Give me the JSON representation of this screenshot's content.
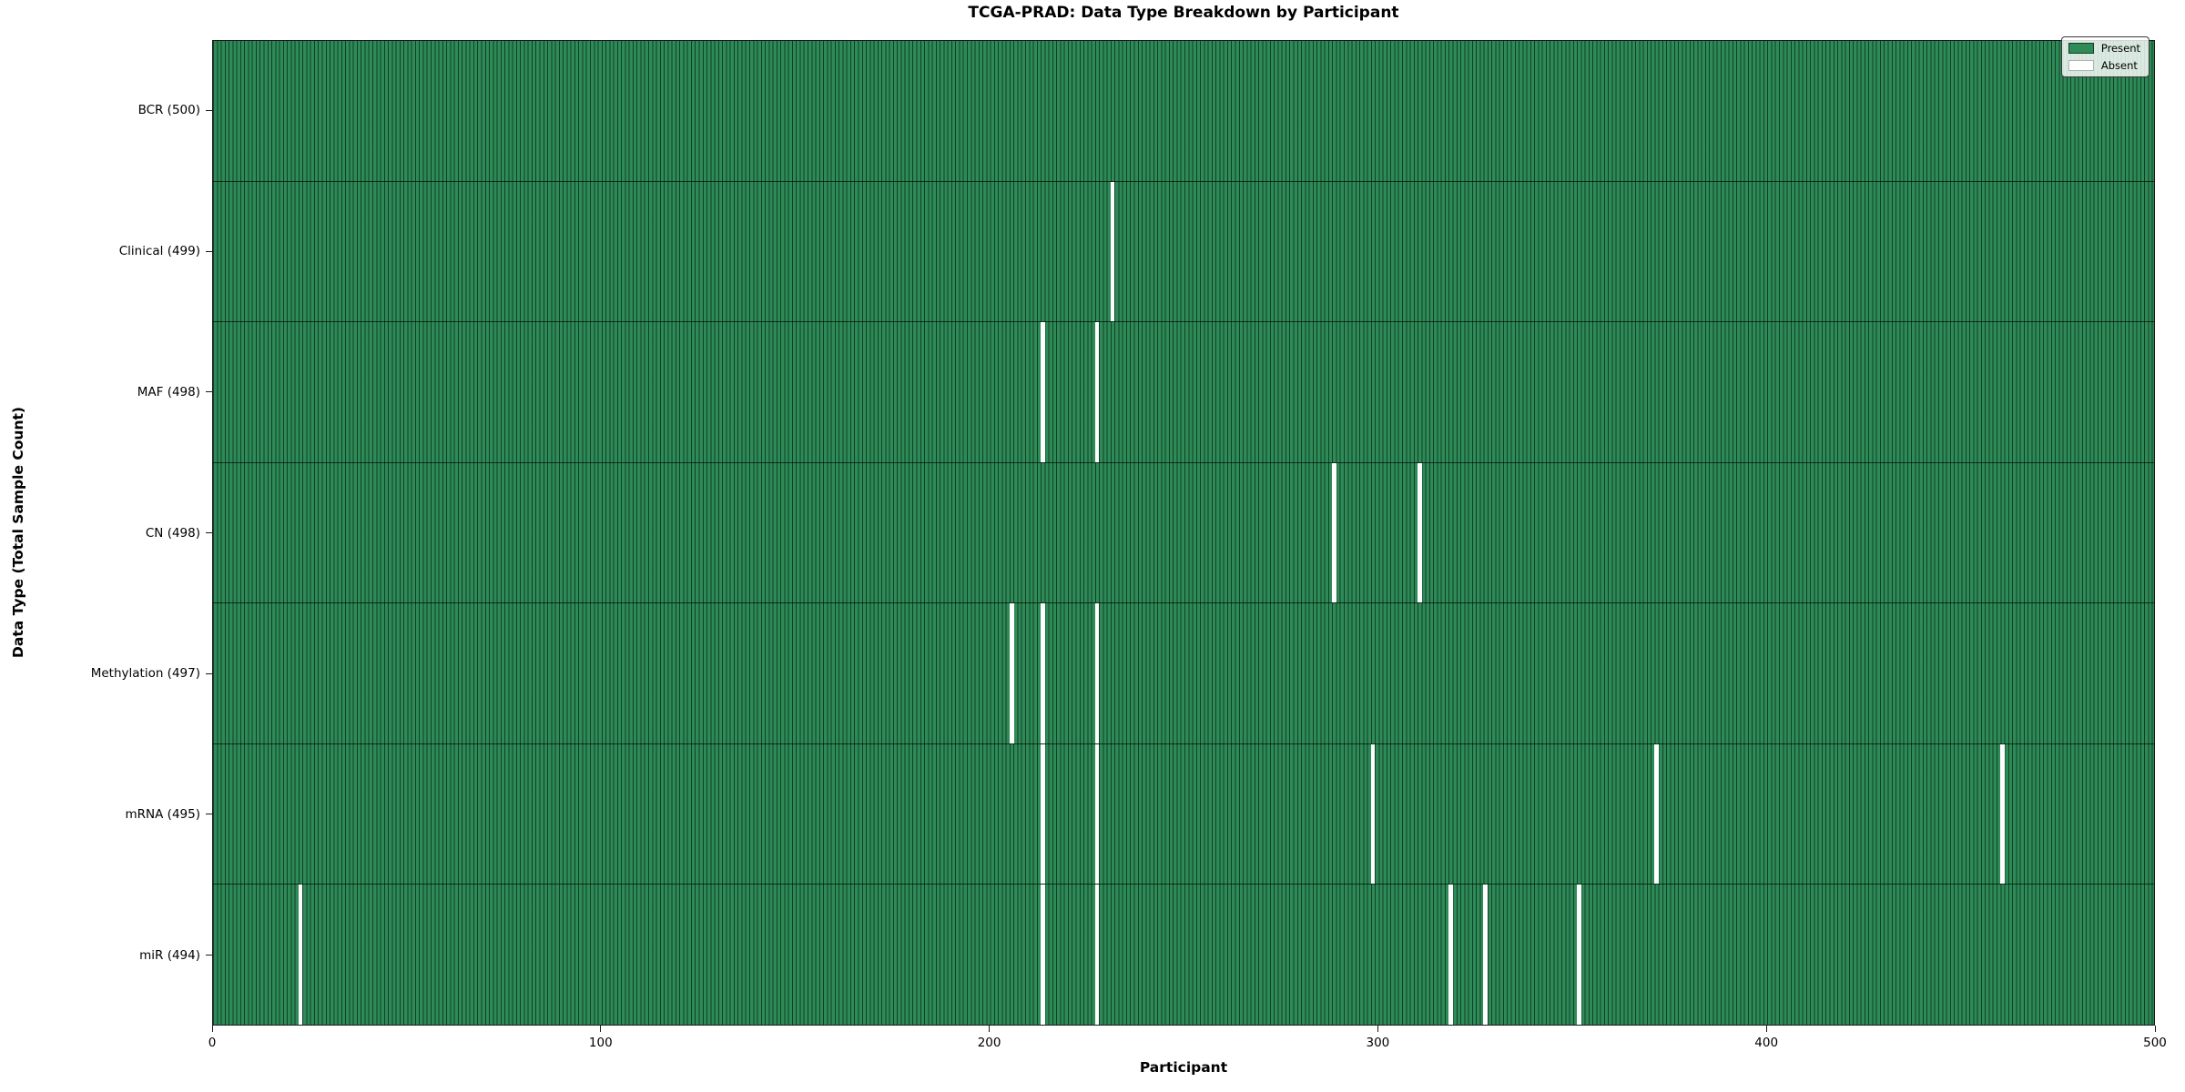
{
  "title": "TCGA-PRAD: Data Type Breakdown by Participant",
  "x_axis": {
    "label": "Participant",
    "tick_labels": [
      "0",
      "100",
      "200",
      "300",
      "400",
      "500"
    ]
  },
  "y_axis": {
    "label": "Data Type (Total Sample Count)"
  },
  "legend": {
    "position": "upper right"
  },
  "colors": {
    "present": "#2E8B57",
    "absent": "#FFFFFF",
    "bar_edge": "#062616",
    "background": "#FFFFFF"
  },
  "chart_data": {
    "type": "heatmap",
    "title": "TCGA-PRAD: Data Type Breakdown by Participant",
    "xlabel": "Participant",
    "ylabel": "Data Type (Total Sample Count)",
    "x_range": [
      0,
      500
    ],
    "x_ticks": [
      0,
      100,
      200,
      300,
      400,
      500
    ],
    "n_participants": 500,
    "grid": false,
    "legend_entries": [
      "Present",
      "Absent"
    ],
    "legend_position": "upper right",
    "rows": [
      {
        "label": "BCR (500)",
        "data_type": "BCR",
        "total_samples": 500,
        "absent_participants": []
      },
      {
        "label": "Clinical (499)",
        "data_type": "Clinical",
        "total_samples": 499,
        "absent_participants": [
          231
        ]
      },
      {
        "label": "MAF (498)",
        "data_type": "MAF",
        "total_samples": 498,
        "absent_participants": [
          213,
          227
        ]
      },
      {
        "label": "CN (498)",
        "data_type": "CN",
        "total_samples": 498,
        "absent_participants": [
          288,
          310
        ]
      },
      {
        "label": "Methylation (497)",
        "data_type": "Methylation",
        "total_samples": 497,
        "absent_participants": [
          205,
          213,
          227
        ]
      },
      {
        "label": "mRNA (495)",
        "data_type": "mRNA",
        "total_samples": 495,
        "absent_participants": [
          213,
          227,
          298,
          371,
          460
        ]
      },
      {
        "label": "miR (494)",
        "data_type": "miR",
        "total_samples": 494,
        "absent_participants": [
          22,
          213,
          227,
          318,
          327,
          351
        ]
      }
    ]
  }
}
